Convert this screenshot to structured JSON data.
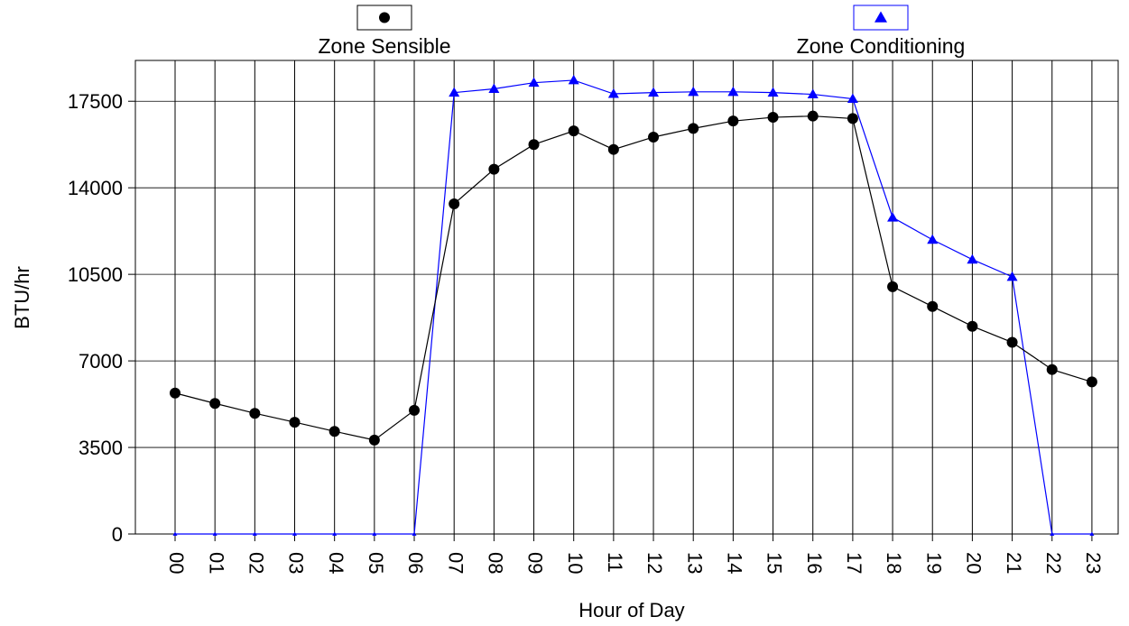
{
  "chart_data": {
    "type": "line",
    "title": "",
    "xlabel": "Hour of Day",
    "ylabel": "BTU/hr",
    "categories": [
      "00",
      "01",
      "02",
      "03",
      "04",
      "05",
      "06",
      "07",
      "08",
      "09",
      "10",
      "11",
      "12",
      "13",
      "14",
      "15",
      "16",
      "17",
      "18",
      "19",
      "20",
      "21",
      "22",
      "23"
    ],
    "yticks": [
      0,
      3500,
      7000,
      10500,
      14000,
      17500
    ],
    "ylim": [
      0,
      19150
    ],
    "grid": true,
    "legend_placement": "top",
    "series": [
      {
        "name": "Zone Sensible",
        "marker": "circle",
        "color": "#000000",
        "values": [
          5700,
          5280,
          4880,
          4520,
          4150,
          3800,
          5000,
          13350,
          14750,
          15750,
          16300,
          15550,
          16050,
          16400,
          16700,
          16850,
          16900,
          16800,
          10000,
          9200,
          8400,
          7750,
          6650,
          6150
        ]
      },
      {
        "name": "Zone Conditioning",
        "marker": "triangle",
        "color": "#0000ff",
        "values": [
          0,
          0,
          0,
          0,
          0,
          0,
          0,
          17850,
          18000,
          18250,
          18350,
          17800,
          17850,
          17880,
          17880,
          17850,
          17780,
          17600,
          12800,
          11900,
          11100,
          10400,
          0,
          0
        ]
      }
    ]
  }
}
